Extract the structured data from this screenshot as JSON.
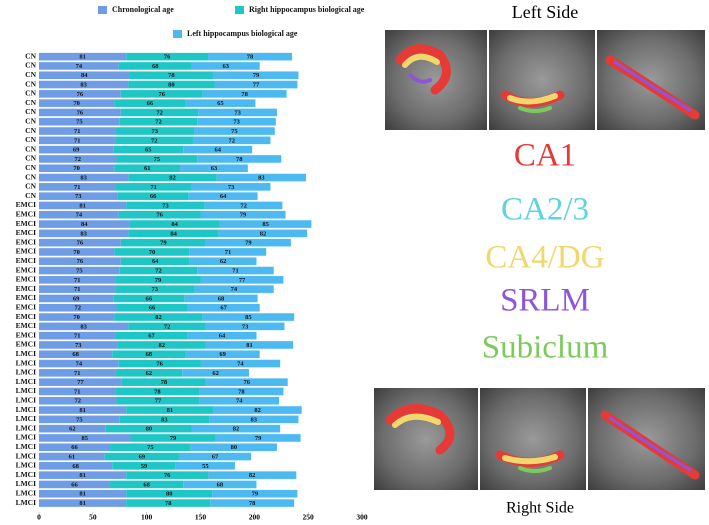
{
  "chart_data": {
    "type": "stacked-barh",
    "categories": [
      "CN",
      "CN",
      "CN",
      "CN",
      "CN",
      "CN",
      "CN",
      "CN",
      "CN",
      "CN",
      "CN",
      "CN",
      "CN",
      "CN",
      "CN",
      "CN",
      "EMCI",
      "EMCI",
      "EMCI",
      "EMCI",
      "EMCI",
      "EMCI",
      "EMCI",
      "EMCI",
      "EMCI",
      "EMCI",
      "EMCI",
      "EMCI",
      "EMCI",
      "EMCI",
      "EMCI",
      "EMCI",
      "LMCI",
      "LMCI",
      "LMCI",
      "LMCI",
      "LMCI",
      "LMCI",
      "LMCI",
      "LMCI",
      "LMCI",
      "LMCI",
      "LMCI",
      "LMCI",
      "LMCI",
      "LMCI",
      "LMCI",
      "LMCI",
      "LMCI"
    ],
    "series": [
      {
        "name": "Chronological age",
        "color": "#6e9de6",
        "values": [
          81,
          74,
          84,
          83,
          76,
          70,
          76,
          75,
          71,
          71,
          69,
          72,
          70,
          83,
          71,
          73,
          81,
          74,
          84,
          83,
          76,
          70,
          76,
          75,
          71,
          71,
          69,
          72,
          70,
          83,
          71,
          73,
          68,
          74,
          71,
          77,
          71,
          72,
          81,
          75,
          62,
          85,
          66,
          61,
          68,
          81,
          66,
          81,
          81
        ]
      },
      {
        "name": "Right hippocampus biological age",
        "color": "#1fc6c6",
        "values": [
          76,
          68,
          78,
          80,
          76,
          66,
          72,
          72,
          73,
          72,
          65,
          75,
          61,
          82,
          71,
          66,
          73,
          76,
          84,
          84,
          79,
          70,
          64,
          72,
          79,
          73,
          66,
          66,
          82,
          72,
          67,
          82,
          68,
          76,
          62,
          78,
          78,
          77,
          81,
          83,
          80,
          79,
          75,
          69,
          59,
          76,
          68,
          80,
          78
        ]
      },
      {
        "name": "Left hippocampus biological age",
        "color": "#4cbaf0",
        "values": [
          78,
          63,
          79,
          77,
          78,
          65,
          73,
          73,
          75,
          72,
          64,
          78,
          63,
          83,
          73,
          64,
          72,
          79,
          85,
          82,
          79,
          71,
          62,
          71,
          77,
          74,
          68,
          67,
          85,
          73,
          64,
          81,
          69,
          74,
          62,
          76,
          78,
          74,
          82,
          83,
          82,
          79,
          80,
          67,
          55,
          82,
          68,
          79,
          78
        ]
      }
    ],
    "xlim": [
      0,
      300
    ],
    "xticks": [
      0,
      50,
      100,
      150,
      200,
      250,
      300
    ]
  },
  "panel": {
    "left_title": "Left Side",
    "right_title": "Right Side",
    "regions": [
      {
        "label": "CA1",
        "color": "#e53a36"
      },
      {
        "label": "CA2/3",
        "color": "#5fd2df"
      },
      {
        "label": "CA4/DG",
        "color": "#f1d76c"
      },
      {
        "label": "SRLM",
        "color": "#8f55d9"
      },
      {
        "label": "Subiclum",
        "color": "#7dca5c"
      }
    ]
  }
}
